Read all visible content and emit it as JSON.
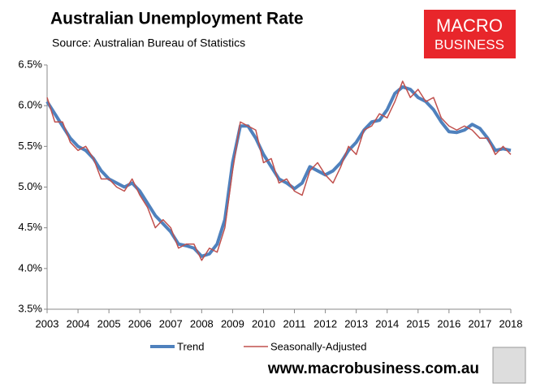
{
  "chart_data": {
    "type": "line",
    "title": "Australian Unemployment Rate",
    "subtitle": "Source: Australian Bureau of Statistics",
    "logo": [
      "MACRO",
      "BUSINESS"
    ],
    "website": "www.macrobusiness.com.au",
    "x": [
      2003,
      2003.25,
      2003.5,
      2003.75,
      2004,
      2004.25,
      2004.5,
      2004.75,
      2005,
      2005.25,
      2005.5,
      2005.75,
      2006,
      2006.25,
      2006.5,
      2006.75,
      2007,
      2007.25,
      2007.5,
      2007.75,
      2008,
      2008.25,
      2008.5,
      2008.75,
      2009,
      2009.25,
      2009.5,
      2009.75,
      2010,
      2010.25,
      2010.5,
      2010.75,
      2011,
      2011.25,
      2011.5,
      2011.75,
      2012,
      2012.25,
      2012.5,
      2012.75,
      2013,
      2013.25,
      2013.5,
      2013.75,
      2014,
      2014.25,
      2014.5,
      2014.75,
      2015,
      2015.25,
      2015.5,
      2015.75,
      2016,
      2016.25,
      2016.5,
      2016.75,
      2017,
      2017.25,
      2017.5,
      2017.75,
      2018
    ],
    "series": [
      {
        "name": "Trend",
        "color": "#4f81bd",
        "width": 4,
        "values": [
          6.05,
          5.9,
          5.75,
          5.6,
          5.5,
          5.45,
          5.35,
          5.2,
          5.1,
          5.05,
          5.0,
          5.05,
          4.95,
          4.8,
          4.65,
          4.55,
          4.45,
          4.3,
          4.28,
          4.25,
          4.15,
          4.18,
          4.3,
          4.6,
          5.3,
          5.75,
          5.75,
          5.6,
          5.4,
          5.25,
          5.1,
          5.05,
          4.98,
          5.05,
          5.25,
          5.2,
          5.15,
          5.2,
          5.3,
          5.45,
          5.55,
          5.7,
          5.8,
          5.82,
          5.95,
          6.15,
          6.23,
          6.2,
          6.1,
          6.05,
          5.95,
          5.8,
          5.68,
          5.67,
          5.7,
          5.77,
          5.72,
          5.6,
          5.45,
          5.47,
          5.45
        ]
      },
      {
        "name": "Seasonally-Adjusted",
        "color": "#c0504d",
        "width": 1.5,
        "values": [
          6.1,
          5.8,
          5.8,
          5.55,
          5.45,
          5.5,
          5.35,
          5.1,
          5.1,
          5.0,
          4.95,
          5.1,
          4.9,
          4.75,
          4.5,
          4.6,
          4.5,
          4.25,
          4.3,
          4.3,
          4.1,
          4.25,
          4.2,
          4.5,
          5.2,
          5.8,
          5.75,
          5.7,
          5.3,
          5.35,
          5.05,
          5.1,
          4.95,
          4.9,
          5.2,
          5.3,
          5.15,
          5.05,
          5.25,
          5.5,
          5.4,
          5.7,
          5.75,
          5.9,
          5.85,
          6.05,
          6.3,
          6.1,
          6.2,
          6.05,
          6.1,
          5.85,
          5.75,
          5.7,
          5.75,
          5.7,
          5.6,
          5.6,
          5.4,
          5.5,
          5.4
        ]
      }
    ],
    "xlim": [
      2003,
      2018
    ],
    "xticks": [
      2003,
      2004,
      2005,
      2006,
      2007,
      2008,
      2009,
      2010,
      2011,
      2012,
      2013,
      2014,
      2015,
      2016,
      2017,
      2018
    ],
    "ylim": [
      3.5,
      6.5
    ],
    "yticks": [
      {
        "value": 3.5,
        "label": "3.5%"
      },
      {
        "value": 4.0,
        "label": "4.0%"
      },
      {
        "value": 4.5,
        "label": "4.5%"
      },
      {
        "value": 5.0,
        "label": "5.0%"
      },
      {
        "value": 5.5,
        "label": "5.5%"
      },
      {
        "value": 6.0,
        "label": "6.0%"
      },
      {
        "value": 6.5,
        "label": "6.5%"
      }
    ],
    "grid": false,
    "legend": "bottom"
  }
}
